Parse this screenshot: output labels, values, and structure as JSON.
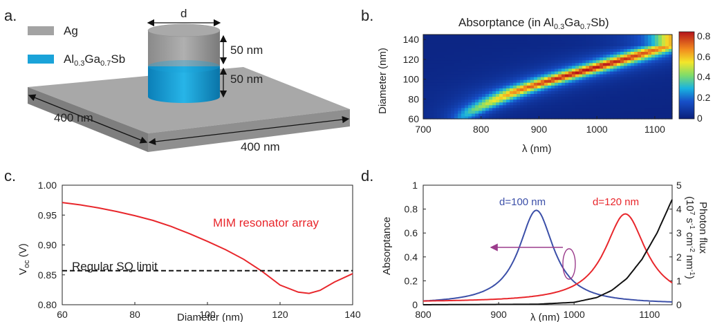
{
  "panel_labels": {
    "a": "a.",
    "b": "b.",
    "c": "c.",
    "d": "d."
  },
  "schematic": {
    "legend": [
      {
        "label": "Ag",
        "color": "#a3a3a3"
      },
      {
        "label_main": "Al",
        "label_sub1": "0.3",
        "label_mid": "Ga",
        "label_sub2": "0.7",
        "label_end": "Sb",
        "color": "#1aa3d9"
      }
    ],
    "dim_d": "d",
    "dim_top": "50 nm",
    "dim_bottom": "50 nm",
    "dim_left": "400 nm",
    "dim_right": "400 nm"
  },
  "colorbar": {
    "ticks": [
      "0.8",
      "0.6",
      "0.4",
      "0.2",
      "0"
    ]
  },
  "chart_data": [
    {
      "panel": "b",
      "type": "heatmap",
      "title_parts": {
        "pre": "Absorptance (in Al",
        "s1": "0.3",
        "mid": "Ga",
        "s2": "0.7",
        "post": "Sb)"
      },
      "xlabel": "λ (nm)",
      "ylabel": "Diameter (nm)",
      "xlim": [
        700,
        1130
      ],
      "ylim": [
        60,
        145
      ],
      "xticks": [
        700,
        800,
        900,
        1000,
        1100
      ],
      "yticks": [
        60,
        80,
        100,
        120,
        140
      ],
      "colorbar_range": [
        0,
        0.85
      ],
      "ridge": {
        "diameter": [
          62,
          70,
          80,
          90,
          100,
          110,
          120,
          130,
          135
        ],
        "wavelength": [
          770,
          792,
          828,
          870,
          925,
          985,
          1045,
          1100,
          1130
        ],
        "peak": [
          0.25,
          0.4,
          0.55,
          0.7,
          0.8,
          0.84,
          0.8,
          0.7,
          0.6
        ]
      }
    },
    {
      "panel": "c",
      "type": "line",
      "xlabel": "Diameter (nm)",
      "ylabel_main": "V",
      "ylabel_sub": "oc",
      "ylabel_unit": " (V)",
      "xlim": [
        60,
        140
      ],
      "ylim": [
        0.8,
        1.0
      ],
      "xticks": [
        60,
        80,
        100,
        120,
        140
      ],
      "yticks": [
        "0.80",
        "0.85",
        "0.90",
        "0.95",
        "1.00"
      ],
      "series": [
        {
          "name": "MIM resonator array",
          "color": "#e8262b",
          "x": [
            60,
            65,
            70,
            75,
            80,
            85,
            90,
            95,
            100,
            105,
            110,
            115,
            120,
            125,
            128,
            131,
            135,
            140
          ],
          "y": [
            0.971,
            0.967,
            0.962,
            0.956,
            0.949,
            0.941,
            0.931,
            0.919,
            0.906,
            0.892,
            0.876,
            0.856,
            0.833,
            0.821,
            0.819,
            0.824,
            0.838,
            0.852
          ]
        },
        {
          "name": "Regular SQ limit",
          "color": "#111111",
          "dashed": true,
          "x": [
            60,
            140
          ],
          "y": [
            0.857,
            0.857
          ]
        }
      ]
    },
    {
      "panel": "d",
      "type": "line",
      "xlabel": "λ (nm)",
      "ylabel": "Absorptance",
      "y2label_line1": "Photon flux",
      "y2label_line2_parts": {
        "a": "(10",
        "b": "7",
        "c": " s",
        "d": "-1",
        "e": " cm",
        "f": "-2",
        "g": " nm",
        "h": "-1",
        "i": ")"
      },
      "xlim": [
        800,
        1130
      ],
      "ylim": [
        0,
        1
      ],
      "y2lim": [
        0,
        5
      ],
      "xticks": [
        800,
        900,
        1000,
        1100
      ],
      "yticks": [
        "0",
        "0.2",
        "0.4",
        "0.6",
        "0.8",
        "1"
      ],
      "y2ticks": [
        "0",
        "1",
        "2",
        "3",
        "4",
        "5"
      ],
      "series": [
        {
          "name": "d=100 nm",
          "color": "#3b4fa8",
          "peak_x": 950,
          "peak_y": 0.79,
          "width": 28,
          "base": 0.005
        },
        {
          "name": "d=120 nm",
          "color": "#e8262b",
          "peak_x": 1068,
          "peak_y": 0.76,
          "width": 33,
          "base": 0.02
        },
        {
          "name": "Photon flux",
          "color": "#111111",
          "axis": "right",
          "x": [
            800,
            950,
            1000,
            1030,
            1050,
            1070,
            1090,
            1110,
            1130
          ],
          "y": [
            0,
            0.02,
            0.1,
            0.3,
            0.6,
            1.1,
            1.9,
            3.0,
            4.4
          ]
        }
      ]
    }
  ]
}
